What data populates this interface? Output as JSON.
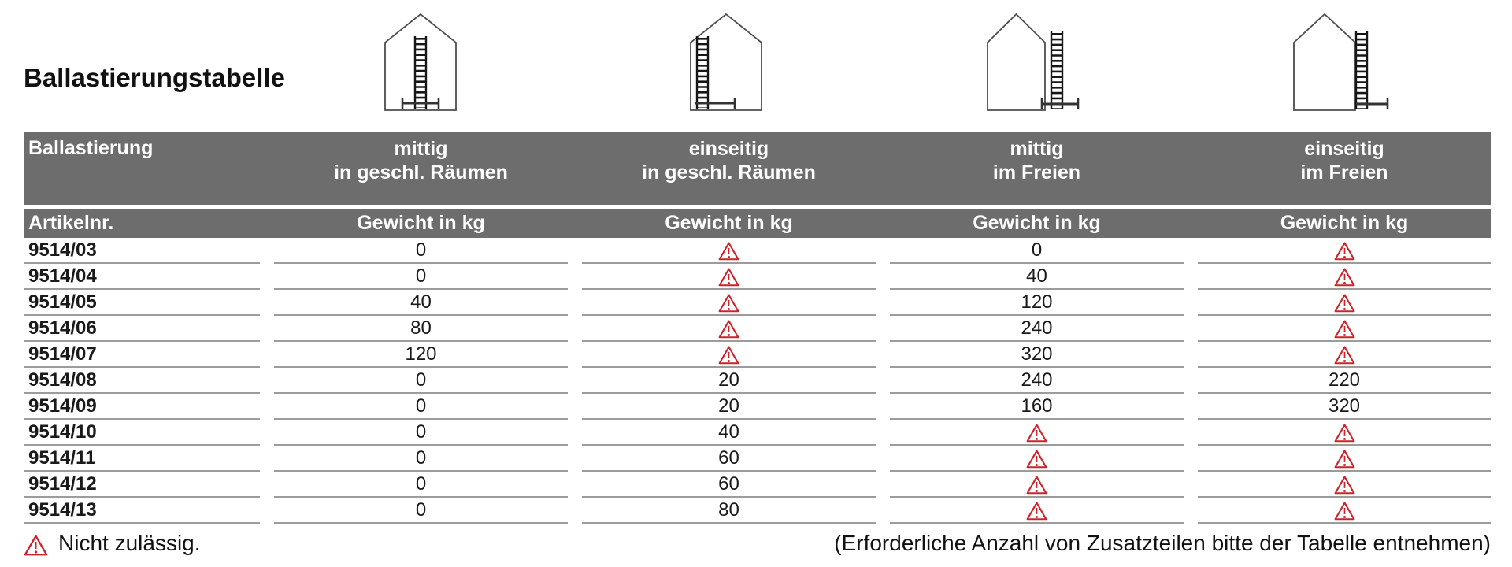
{
  "page": {
    "title": "Ballastierungstabelle",
    "footer": {
      "legend_text": "Nicht zulässig.",
      "note_text": "(Erforderliche Anzahl von Zusatzteilen bitte der Tabelle entnehmen)"
    }
  },
  "colors": {
    "header_band_gray": "#6d6d6d",
    "row_line_gray": "#9c9c9c",
    "warning_red": "#cc2328"
  },
  "icons": [
    {
      "name": "ladder-centered-indoor-icon"
    },
    {
      "name": "ladder-one-sided-indoor-icon"
    },
    {
      "name": "ladder-centered-outdoor-icon"
    },
    {
      "name": "ladder-one-sided-outdoor-icon"
    }
  ],
  "table": {
    "group_header_left": "Ballastierung",
    "groups": [
      {
        "line1": "mittig",
        "line2": "in geschl. Räumen"
      },
      {
        "line1": "einseitig",
        "line2": "in geschl. Räumen"
      },
      {
        "line1": "mittig",
        "line2": "im Freien"
      },
      {
        "line1": "einseitig",
        "line2": "im Freien"
      }
    ],
    "col_header_left": "Artikelnr.",
    "col_header_value": "Gewicht in kg",
    "warning_symbol": "⚠",
    "rows": [
      {
        "article": "9514/03",
        "values": [
          "0",
          "⚠",
          "0",
          "⚠"
        ]
      },
      {
        "article": "9514/04",
        "values": [
          "0",
          "⚠",
          "40",
          "⚠"
        ]
      },
      {
        "article": "9514/05",
        "values": [
          "40",
          "⚠",
          "120",
          "⚠"
        ]
      },
      {
        "article": "9514/06",
        "values": [
          "80",
          "⚠",
          "240",
          "⚠"
        ]
      },
      {
        "article": "9514/07",
        "values": [
          "120",
          "⚠",
          "320",
          "⚠"
        ]
      },
      {
        "article": "9514/08",
        "values": [
          "0",
          "20",
          "240",
          "220"
        ]
      },
      {
        "article": "9514/09",
        "values": [
          "0",
          "20",
          "160",
          "320"
        ]
      },
      {
        "article": "9514/10",
        "values": [
          "0",
          "40",
          "⚠",
          "⚠"
        ]
      },
      {
        "article": "9514/11",
        "values": [
          "0",
          "60",
          "⚠",
          "⚠"
        ]
      },
      {
        "article": "9514/12",
        "values": [
          "0",
          "60",
          "⚠",
          "⚠"
        ]
      },
      {
        "article": "9514/13",
        "values": [
          "0",
          "80",
          "⚠",
          "⚠"
        ]
      }
    ]
  }
}
